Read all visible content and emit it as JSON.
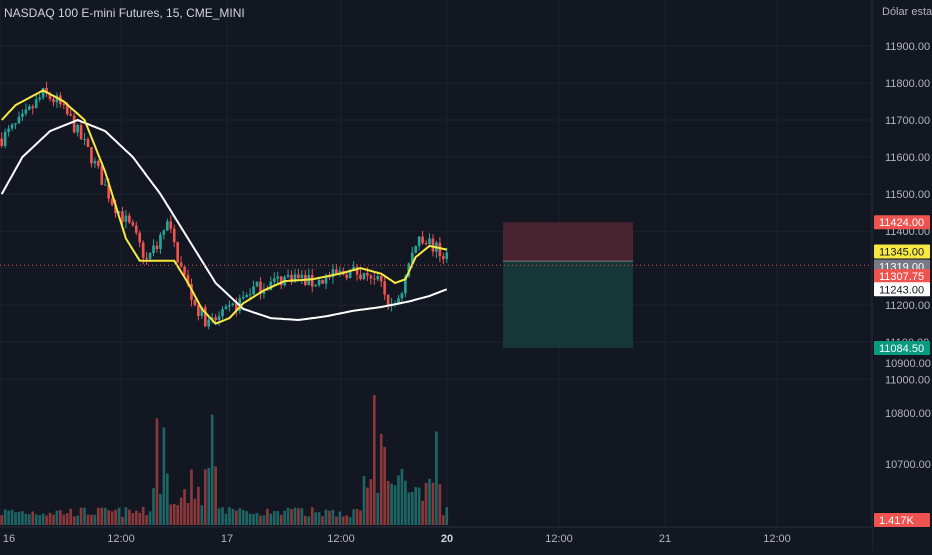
{
  "header": {
    "title": "NASDAQ 100 E-mini Futures, 15, CME_MINI",
    "currency": "Dólar estad"
  },
  "colors": {
    "background": "#131722",
    "grid": "#1e222d",
    "axis_text": "#b2b5be",
    "up_candle": "#26a69a",
    "down_candle": "#ef5350",
    "ma_fast": "#f5e942",
    "ma_slow": "#ffffff",
    "stop_zone": "#4a2530",
    "target_zone": "#16383a",
    "last_price_line": "#ef5350"
  },
  "chart_data": {
    "type": "candlestick",
    "symbol": "NASDAQ 100 E-mini Futures",
    "interval": "15",
    "exchange": "CME_MINI",
    "y_axis": {
      "ticks": [
        11000,
        11100,
        11200,
        11300,
        11400,
        11500,
        11600,
        11700,
        11800,
        11900
      ],
      "tick_labels": [
        "11000.00",
        "11100.00",
        "11200.00",
        "11300.00",
        "11400.00",
        "11500.00",
        "11600.00",
        "11700.00",
        "11800.00",
        "11900.00"
      ],
      "ylim": [
        10620,
        11970
      ]
    },
    "volume_axis_ticks": [
      "10700.00",
      "10800.00",
      "10900.00"
    ],
    "x_axis": {
      "tick_labels": [
        "16",
        "12:00",
        "17",
        "12:00",
        "20",
        "12:00",
        "21",
        "12:00"
      ],
      "bold_labels": [
        "20"
      ]
    },
    "price_labels": [
      {
        "text": "11424.00",
        "value": 11424,
        "bg": "#ef5350",
        "fg": "#ffffff"
      },
      {
        "text": "11345.00",
        "value": 11345,
        "bg": "#f5e942",
        "fg": "#131722"
      },
      {
        "text": "11319.00",
        "value": 11319,
        "bg": "#787b86",
        "fg": "#ffffff"
      },
      {
        "text": "11307.75",
        "value": 11307.75,
        "bg": "#ef5350",
        "fg": "#ffffff"
      },
      {
        "text": "11243.00",
        "value": 11243,
        "bg": "#ffffff",
        "fg": "#131722"
      },
      {
        "text": "11084.50",
        "value": 11084.5,
        "bg": "#089981",
        "fg": "#ffffff"
      }
    ],
    "last_price": 11307.75,
    "volume_last_label": "1.417K",
    "position_tool": {
      "type": "short",
      "stop": 11424,
      "entry": 11319,
      "target": 11084.5
    },
    "price_path": [
      [
        0,
        11650
      ],
      [
        6,
        11700
      ],
      [
        12,
        11770
      ],
      [
        16,
        11750
      ],
      [
        20,
        11700
      ],
      [
        26,
        11600
      ],
      [
        32,
        11480
      ],
      [
        38,
        11400
      ],
      [
        42,
        11320
      ],
      [
        46,
        11380
      ],
      [
        48,
        11420
      ],
      [
        52,
        11300
      ],
      [
        56,
        11200
      ],
      [
        60,
        11150
      ],
      [
        64,
        11170
      ],
      [
        68,
        11200
      ],
      [
        72,
        11240
      ],
      [
        78,
        11260
      ],
      [
        84,
        11280
      ],
      [
        90,
        11260
      ],
      [
        95,
        11275
      ],
      [
        100,
        11290
      ],
      [
        106,
        11290
      ],
      [
        110,
        11250
      ],
      [
        113,
        11190
      ],
      [
        116,
        11240
      ],
      [
        118,
        11310
      ],
      [
        121,
        11390
      ],
      [
        124,
        11370
      ],
      [
        127,
        11340
      ],
      [
        129,
        11330
      ]
    ],
    "ma_fast_path": [
      [
        0,
        11700
      ],
      [
        4,
        11740
      ],
      [
        12,
        11780
      ],
      [
        18,
        11750
      ],
      [
        24,
        11700
      ],
      [
        30,
        11560
      ],
      [
        36,
        11380
      ],
      [
        40,
        11320
      ],
      [
        45,
        11320
      ],
      [
        50,
        11320
      ],
      [
        54,
        11260
      ],
      [
        58,
        11190
      ],
      [
        62,
        11150
      ],
      [
        66,
        11165
      ],
      [
        70,
        11205
      ],
      [
        76,
        11240
      ],
      [
        82,
        11265
      ],
      [
        90,
        11270
      ],
      [
        98,
        11285
      ],
      [
        104,
        11300
      ],
      [
        110,
        11285
      ],
      [
        114,
        11260
      ],
      [
        117,
        11270
      ],
      [
        120,
        11330
      ],
      [
        124,
        11360
      ],
      [
        129,
        11350
      ]
    ],
    "ma_slow_path": [
      [
        0,
        11500
      ],
      [
        6,
        11600
      ],
      [
        14,
        11670
      ],
      [
        22,
        11700
      ],
      [
        30,
        11670
      ],
      [
        38,
        11600
      ],
      [
        46,
        11500
      ],
      [
        54,
        11380
      ],
      [
        62,
        11260
      ],
      [
        70,
        11190
      ],
      [
        78,
        11165
      ],
      [
        86,
        11160
      ],
      [
        94,
        11170
      ],
      [
        102,
        11185
      ],
      [
        110,
        11195
      ],
      [
        118,
        11210
      ],
      [
        124,
        11225
      ],
      [
        129,
        11243
      ]
    ],
    "bars_count": 130,
    "volume_spikes": [
      {
        "bar": 45,
        "volume": 0.82
      },
      {
        "bar": 47,
        "volume": 0.75
      },
      {
        "bar": 61,
        "volume": 0.85
      },
      {
        "bar": 62,
        "volume": 0.45
      },
      {
        "bar": 108,
        "volume": 1.0
      },
      {
        "bar": 110,
        "volume": 0.7
      },
      {
        "bar": 111,
        "volume": 0.6
      },
      {
        "bar": 126,
        "volume": 0.72
      }
    ]
  }
}
